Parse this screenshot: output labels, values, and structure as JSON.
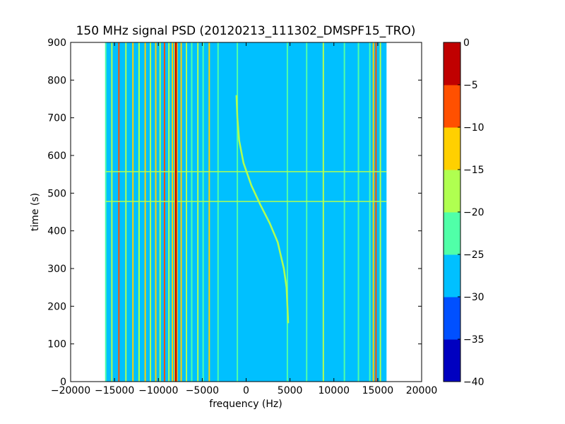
{
  "chart_data": {
    "type": "heatmap",
    "title": "150 MHz signal PSD (20120213_111302_DMSPF15_TRO)",
    "xlabel": "frequency (Hz)",
    "ylabel": "time (s)",
    "xlim": [
      -20000,
      20000
    ],
    "ylim": [
      0,
      900
    ],
    "xticks": [
      -20000,
      -15000,
      -10000,
      -5000,
      0,
      5000,
      10000,
      15000,
      20000
    ],
    "xtick_labels": [
      "−20000",
      "−15000",
      "−10000",
      "−5000",
      "0",
      "5000",
      "10000",
      "15000",
      "20000"
    ],
    "yticks": [
      0,
      100,
      200,
      300,
      400,
      500,
      600,
      700,
      800,
      900
    ],
    "ytick_labels": [
      "0",
      "100",
      "200",
      "300",
      "400",
      "500",
      "600",
      "700",
      "800",
      "900"
    ],
    "data_extent": {
      "freq_min": -16000,
      "freq_max": 16000,
      "time_min": 0,
      "time_max": 900
    },
    "colorbar": {
      "levels": [
        -40,
        -35,
        -30,
        -25,
        -20,
        -15,
        -10,
        -5,
        0
      ],
      "tick_labels": [
        "−40",
        "−35",
        "−30",
        "−25",
        "−20",
        "−15",
        "−10",
        "−5",
        "0"
      ],
      "colors": [
        "#0000c0",
        "#0050ff",
        "#00c0ff",
        "#50ffa8",
        "#b0ff50",
        "#ffd000",
        "#ff5000",
        "#c00000"
      ]
    },
    "background_level": -27.5,
    "vertical_lines": [
      {
        "freq": -16000,
        "level": -22
      },
      {
        "freq": -15300,
        "level": -18
      },
      {
        "freq": -14500,
        "level": -8
      },
      {
        "freq": -13700,
        "level": -17
      },
      {
        "freq": -12900,
        "level": -12
      },
      {
        "freq": -12200,
        "level": -17
      },
      {
        "freq": -11500,
        "level": -10
      },
      {
        "freq": -10900,
        "level": -16
      },
      {
        "freq": -10300,
        "level": -12
      },
      {
        "freq": -9800,
        "level": -15
      },
      {
        "freq": -9300,
        "level": -7
      },
      {
        "freq": -8800,
        "level": -15
      },
      {
        "freq": -8400,
        "level": -10
      },
      {
        "freq": -7900,
        "level": -16
      },
      {
        "freq": -7400,
        "level": -13
      },
      {
        "freq": -6800,
        "level": -17
      },
      {
        "freq": -6200,
        "level": -20
      },
      {
        "freq": -5500,
        "level": -18
      },
      {
        "freq": -4900,
        "level": -22
      },
      {
        "freq": -4200,
        "level": -12
      },
      {
        "freq": -3200,
        "level": -22
      },
      {
        "freq": -1000,
        "level": -22
      },
      {
        "freq": 4700,
        "level": -22
      },
      {
        "freq": 6900,
        "level": -22
      },
      {
        "freq": 8800,
        "level": -18
      },
      {
        "freq": 11200,
        "level": -22
      },
      {
        "freq": 12800,
        "level": -22
      },
      {
        "freq": 14100,
        "level": -22
      },
      {
        "freq": 14500,
        "level": -13
      },
      {
        "freq": 14800,
        "level": -5
      },
      {
        "freq": 15300,
        "level": -18
      }
    ],
    "center_line": {
      "freq": -8000,
      "level": 0
    },
    "doppler_curve": {
      "level": -17,
      "points": [
        {
          "freq": 4800,
          "time": 155
        },
        {
          "freq": 4600,
          "time": 250
        },
        {
          "freq": 4300,
          "time": 300
        },
        {
          "freq": 3600,
          "time": 370
        },
        {
          "freq": 2700,
          "time": 420
        },
        {
          "freq": 1600,
          "time": 470
        },
        {
          "freq": 600,
          "time": 520
        },
        {
          "freq": -300,
          "time": 580
        },
        {
          "freq": -800,
          "time": 640
        },
        {
          "freq": -1000,
          "time": 700
        },
        {
          "freq": -1100,
          "time": 760
        }
      ]
    },
    "horizontal_lines": [
      {
        "time": 478,
        "level": -18
      },
      {
        "time": 557,
        "level": -18
      }
    ]
  }
}
